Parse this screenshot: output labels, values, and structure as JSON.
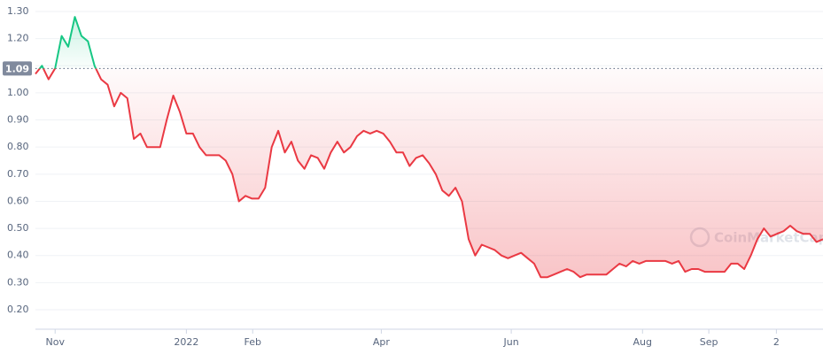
{
  "chart_data": {
    "type": "line",
    "watermark": "CoinMarketCap",
    "baseline": 1.09,
    "xlim": [
      0,
      120
    ],
    "xticks": [
      {
        "value": 3,
        "label": "Nov"
      },
      {
        "value": 23,
        "label": "2022"
      },
      {
        "value": 33.1,
        "label": "Feb"
      },
      {
        "value": 52.7,
        "label": "Apr"
      },
      {
        "value": 72.5,
        "label": "Jun"
      },
      {
        "value": 92.5,
        "label": "Aug"
      },
      {
        "value": 102.6,
        "label": "Sep"
      },
      {
        "value": 112.9,
        "label": "2"
      }
    ],
    "ylim": [
      0.2,
      1.3
    ],
    "yticks": [
      {
        "value": 0.2,
        "label": "0.20"
      },
      {
        "value": 0.3,
        "label": "0.30"
      },
      {
        "value": 0.4,
        "label": "0.40"
      },
      {
        "value": 0.5,
        "label": "0.50"
      },
      {
        "value": 0.6,
        "label": "0.60"
      },
      {
        "value": 0.7,
        "label": "0.70"
      },
      {
        "value": 0.8,
        "label": "0.80"
      },
      {
        "value": 0.9,
        "label": "0.90"
      },
      {
        "value": 1.0,
        "label": "1.00"
      },
      {
        "value": 1.1,
        "label": "1.10"
      },
      {
        "value": 1.2,
        "label": "1.20"
      },
      {
        "value": 1.3,
        "label": "1.30"
      }
    ],
    "grid": true,
    "up_color": "#16c784",
    "down_color": "#ea3943",
    "values": [
      1.07,
      1.1,
      1.05,
      1.09,
      1.21,
      1.17,
      1.28,
      1.21,
      1.19,
      1.1,
      1.05,
      1.03,
      0.95,
      1.0,
      0.98,
      0.83,
      0.85,
      0.8,
      0.8,
      0.8,
      0.9,
      0.99,
      0.93,
      0.85,
      0.85,
      0.8,
      0.77,
      0.77,
      0.77,
      0.75,
      0.7,
      0.6,
      0.62,
      0.61,
      0.61,
      0.65,
      0.8,
      0.86,
      0.78,
      0.82,
      0.75,
      0.72,
      0.77,
      0.76,
      0.72,
      0.78,
      0.82,
      0.78,
      0.8,
      0.84,
      0.86,
      0.85,
      0.86,
      0.85,
      0.82,
      0.78,
      0.78,
      0.73,
      0.76,
      0.77,
      0.74,
      0.7,
      0.64,
      0.62,
      0.65,
      0.6,
      0.46,
      0.4,
      0.44,
      0.43,
      0.42,
      0.4,
      0.39,
      0.4,
      0.41,
      0.39,
      0.37,
      0.32,
      0.32,
      0.33,
      0.34,
      0.35,
      0.34,
      0.32,
      0.33,
      0.33,
      0.33,
      0.33,
      0.35,
      0.37,
      0.36,
      0.38,
      0.37,
      0.38,
      0.38,
      0.38,
      0.38,
      0.37,
      0.38,
      0.34,
      0.35,
      0.35,
      0.34,
      0.34,
      0.34,
      0.34,
      0.37,
      0.37,
      0.35,
      0.4,
      0.46,
      0.5,
      0.47,
      0.48,
      0.49,
      0.51,
      0.49,
      0.48,
      0.48,
      0.45,
      0.46
    ]
  }
}
